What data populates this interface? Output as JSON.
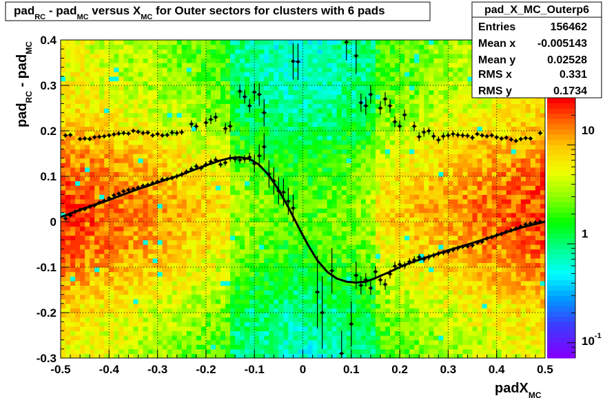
{
  "title": {
    "p1": "pad",
    "s1": "RC",
    "p2": " - pad",
    "s2": "MC",
    "p3": " versus X",
    "s3": "MC",
    "p4": " for Outer sectors for clusters with 6 pads"
  },
  "stats": {
    "name": "pad_X_MC_Outerp6",
    "rows": [
      {
        "label": "Entries",
        "value": "156462"
      },
      {
        "label": "Mean x",
        "value": "-0.005143"
      },
      {
        "label": "Mean y",
        "value": "0.02528"
      },
      {
        "label": "RMS x",
        "value": "0.331"
      },
      {
        "label": "RMS y",
        "value": "0.1734"
      }
    ]
  },
  "xaxis": {
    "label_main": "padX",
    "label_sub": "MC",
    "ticks": [
      "-0.5",
      "-0.4",
      "-0.3",
      "-0.2",
      "-0.1",
      "0",
      "0.1",
      "0.2",
      "0.3",
      "0.4",
      "0.5"
    ]
  },
  "yaxis": {
    "label_p1": "pad",
    "label_s1": "RC",
    "label_p2": " - pad",
    "label_s2": "MC",
    "ticks": [
      "-0.3",
      "-0.2",
      "-0.1",
      "0",
      "0.1",
      "0.2",
      "0.3",
      "0.4"
    ]
  },
  "zaxis": {
    "ticks": [
      {
        "main": "10",
        "exp": "-1"
      },
      {
        "main": "1",
        "exp": ""
      },
      {
        "main": "10",
        "exp": ""
      }
    ],
    "scale": "log"
  },
  "chart_data": {
    "type": "heatmap",
    "xlim": [
      -0.5,
      0.5
    ],
    "ylim": [
      -0.3,
      0.4
    ],
    "zlim": [
      0.07,
      30
    ],
    "grid": true,
    "legend": "top-right",
    "profile_points": [
      {
        "x": -0.49,
        "y": 0.007,
        "e": 0.005
      },
      {
        "x": -0.48,
        "y": 0.014,
        "e": 0.005
      },
      {
        "x": -0.47,
        "y": 0.022,
        "e": 0.005
      },
      {
        "x": -0.46,
        "y": 0.026,
        "e": 0.005
      },
      {
        "x": -0.45,
        "y": 0.028,
        "e": 0.005
      },
      {
        "x": -0.44,
        "y": 0.033,
        "e": 0.005
      },
      {
        "x": -0.43,
        "y": 0.036,
        "e": 0.005
      },
      {
        "x": -0.42,
        "y": 0.042,
        "e": 0.005
      },
      {
        "x": -0.41,
        "y": 0.046,
        "e": 0.005
      },
      {
        "x": -0.4,
        "y": 0.052,
        "e": 0.005
      },
      {
        "x": -0.39,
        "y": 0.058,
        "e": 0.005
      },
      {
        "x": -0.38,
        "y": 0.062,
        "e": 0.005
      },
      {
        "x": -0.37,
        "y": 0.067,
        "e": 0.005
      },
      {
        "x": -0.36,
        "y": 0.07,
        "e": 0.005
      },
      {
        "x": -0.35,
        "y": 0.072,
        "e": 0.005
      },
      {
        "x": -0.34,
        "y": 0.075,
        "e": 0.005
      },
      {
        "x": -0.33,
        "y": 0.079,
        "e": 0.005
      },
      {
        "x": -0.32,
        "y": 0.081,
        "e": 0.005
      },
      {
        "x": -0.31,
        "y": 0.085,
        "e": 0.005
      },
      {
        "x": -0.3,
        "y": 0.088,
        "e": 0.005
      },
      {
        "x": -0.29,
        "y": 0.093,
        "e": 0.005
      },
      {
        "x": -0.28,
        "y": 0.094,
        "e": 0.005
      },
      {
        "x": -0.27,
        "y": 0.096,
        "e": 0.005
      },
      {
        "x": -0.26,
        "y": 0.1,
        "e": 0.006
      },
      {
        "x": -0.25,
        "y": 0.104,
        "e": 0.006
      },
      {
        "x": -0.24,
        "y": 0.11,
        "e": 0.006
      },
      {
        "x": -0.23,
        "y": 0.116,
        "e": 0.006
      },
      {
        "x": -0.22,
        "y": 0.122,
        "e": 0.006
      },
      {
        "x": -0.21,
        "y": 0.118,
        "e": 0.006
      },
      {
        "x": -0.2,
        "y": 0.126,
        "e": 0.006
      },
      {
        "x": -0.19,
        "y": 0.132,
        "e": 0.007
      },
      {
        "x": -0.18,
        "y": 0.136,
        "e": 0.007
      },
      {
        "x": -0.17,
        "y": 0.126,
        "e": 0.007
      },
      {
        "x": -0.16,
        "y": 0.13,
        "e": 0.007
      },
      {
        "x": -0.15,
        "y": 0.14,
        "e": 0.008
      },
      {
        "x": -0.14,
        "y": 0.138,
        "e": 0.008
      },
      {
        "x": -0.13,
        "y": 0.136,
        "e": 0.008
      },
      {
        "x": -0.12,
        "y": 0.138,
        "e": 0.009
      },
      {
        "x": -0.11,
        "y": 0.142,
        "e": 0.01
      },
      {
        "x": -0.1,
        "y": 0.128,
        "e": 0.02
      },
      {
        "x": -0.09,
        "y": 0.145,
        "e": 0.025
      },
      {
        "x": -0.08,
        "y": 0.165,
        "e": 0.03
      },
      {
        "x": -0.07,
        "y": 0.105,
        "e": 0.03
      },
      {
        "x": -0.06,
        "y": 0.09,
        "e": 0.03
      },
      {
        "x": -0.05,
        "y": 0.068,
        "e": 0.03
      },
      {
        "x": -0.04,
        "y": 0.065,
        "e": 0.03
      },
      {
        "x": -0.03,
        "y": 0.045,
        "e": 0.03
      },
      {
        "x": -0.02,
        "y": 0.03,
        "e": 0.03
      },
      {
        "x": 0.03,
        "y": -0.155,
        "e": 0.08
      },
      {
        "x": 0.04,
        "y": -0.2,
        "e": 0.08
      },
      {
        "x": 0.06,
        "y": -0.108,
        "e": 0.05
      },
      {
        "x": 0.08,
        "y": -0.29,
        "e": 0.05
      },
      {
        "x": 0.1,
        "y": -0.225,
        "e": 0.05
      },
      {
        "x": 0.11,
        "y": -0.118,
        "e": 0.03
      },
      {
        "x": 0.12,
        "y": -0.14,
        "e": 0.02
      },
      {
        "x": 0.13,
        "y": -0.128,
        "e": 0.015
      },
      {
        "x": 0.14,
        "y": -0.146,
        "e": 0.015
      },
      {
        "x": 0.15,
        "y": -0.11,
        "e": 0.012
      },
      {
        "x": 0.16,
        "y": -0.128,
        "e": 0.012
      },
      {
        "x": 0.17,
        "y": -0.138,
        "e": 0.012
      },
      {
        "x": 0.18,
        "y": -0.115,
        "e": 0.01
      },
      {
        "x": 0.19,
        "y": -0.098,
        "e": 0.01
      },
      {
        "x": 0.2,
        "y": -0.094,
        "e": 0.01
      },
      {
        "x": 0.21,
        "y": -0.096,
        "e": 0.008
      },
      {
        "x": 0.22,
        "y": -0.088,
        "e": 0.008
      },
      {
        "x": 0.23,
        "y": -0.084,
        "e": 0.008
      },
      {
        "x": 0.24,
        "y": -0.078,
        "e": 0.007
      },
      {
        "x": 0.25,
        "y": -0.082,
        "e": 0.007
      },
      {
        "x": 0.26,
        "y": -0.078,
        "e": 0.007
      },
      {
        "x": 0.27,
        "y": -0.074,
        "e": 0.006
      },
      {
        "x": 0.28,
        "y": -0.07,
        "e": 0.006
      },
      {
        "x": 0.29,
        "y": -0.068,
        "e": 0.006
      },
      {
        "x": 0.3,
        "y": -0.066,
        "e": 0.006
      },
      {
        "x": 0.31,
        "y": -0.062,
        "e": 0.006
      },
      {
        "x": 0.32,
        "y": -0.058,
        "e": 0.006
      },
      {
        "x": 0.33,
        "y": -0.055,
        "e": 0.005
      },
      {
        "x": 0.34,
        "y": -0.054,
        "e": 0.005
      },
      {
        "x": 0.35,
        "y": -0.052,
        "e": 0.005
      },
      {
        "x": 0.36,
        "y": -0.046,
        "e": 0.005
      },
      {
        "x": 0.37,
        "y": -0.044,
        "e": 0.005
      },
      {
        "x": 0.38,
        "y": -0.037,
        "e": 0.005
      },
      {
        "x": 0.39,
        "y": -0.034,
        "e": 0.005
      },
      {
        "x": 0.4,
        "y": -0.03,
        "e": 0.005
      },
      {
        "x": 0.41,
        "y": -0.027,
        "e": 0.005
      },
      {
        "x": 0.42,
        "y": -0.022,
        "e": 0.005
      },
      {
        "x": 0.43,
        "y": -0.019,
        "e": 0.005
      },
      {
        "x": 0.44,
        "y": -0.015,
        "e": 0.005
      },
      {
        "x": 0.45,
        "y": -0.011,
        "e": 0.005
      },
      {
        "x": 0.46,
        "y": -0.006,
        "e": 0.005
      },
      {
        "x": 0.47,
        "y": -0.004,
        "e": 0.005
      },
      {
        "x": 0.48,
        "y": -0.002,
        "e": 0.005
      },
      {
        "x": 0.49,
        "y": 0.0,
        "e": 0.005
      }
    ],
    "upper_points": [
      {
        "x": -0.49,
        "y": 0.19,
        "e": 0.005
      },
      {
        "x": -0.48,
        "y": 0.191,
        "e": 0.005
      },
      {
        "x": -0.46,
        "y": 0.182,
        "e": 0.005
      },
      {
        "x": -0.45,
        "y": 0.183,
        "e": 0.005
      },
      {
        "x": -0.44,
        "y": 0.182,
        "e": 0.005
      },
      {
        "x": -0.43,
        "y": 0.186,
        "e": 0.005
      },
      {
        "x": -0.42,
        "y": 0.187,
        "e": 0.005
      },
      {
        "x": -0.41,
        "y": 0.188,
        "e": 0.005
      },
      {
        "x": -0.4,
        "y": 0.19,
        "e": 0.005
      },
      {
        "x": -0.39,
        "y": 0.192,
        "e": 0.005
      },
      {
        "x": -0.38,
        "y": 0.194,
        "e": 0.005
      },
      {
        "x": -0.37,
        "y": 0.195,
        "e": 0.005
      },
      {
        "x": -0.36,
        "y": 0.194,
        "e": 0.005
      },
      {
        "x": -0.35,
        "y": 0.2,
        "e": 0.005
      },
      {
        "x": -0.34,
        "y": 0.198,
        "e": 0.005
      },
      {
        "x": -0.33,
        "y": 0.195,
        "e": 0.005
      },
      {
        "x": -0.32,
        "y": 0.196,
        "e": 0.005
      },
      {
        "x": -0.31,
        "y": 0.19,
        "e": 0.005
      },
      {
        "x": -0.3,
        "y": 0.193,
        "e": 0.005
      },
      {
        "x": -0.29,
        "y": 0.19,
        "e": 0.005
      },
      {
        "x": -0.28,
        "y": 0.191,
        "e": 0.005
      },
      {
        "x": -0.27,
        "y": 0.196,
        "e": 0.006
      },
      {
        "x": -0.26,
        "y": 0.195,
        "e": 0.006
      },
      {
        "x": -0.25,
        "y": 0.197,
        "e": 0.006
      },
      {
        "x": -0.23,
        "y": 0.215,
        "e": 0.008
      },
      {
        "x": -0.22,
        "y": 0.21,
        "e": 0.008
      },
      {
        "x": -0.2,
        "y": 0.218,
        "e": 0.01
      },
      {
        "x": -0.19,
        "y": 0.225,
        "e": 0.01
      },
      {
        "x": -0.18,
        "y": 0.23,
        "e": 0.01
      },
      {
        "x": -0.16,
        "y": 0.205,
        "e": 0.012
      },
      {
        "x": -0.15,
        "y": 0.21,
        "e": 0.012
      },
      {
        "x": -0.13,
        "y": 0.287,
        "e": 0.015
      },
      {
        "x": -0.12,
        "y": 0.275,
        "e": 0.015
      },
      {
        "x": -0.11,
        "y": 0.255,
        "e": 0.015
      },
      {
        "x": -0.1,
        "y": 0.285,
        "e": 0.02
      },
      {
        "x": -0.09,
        "y": 0.28,
        "e": 0.025
      },
      {
        "x": -0.08,
        "y": 0.24,
        "e": 0.03
      },
      {
        "x": -0.02,
        "y": 0.353,
        "e": 0.04
      },
      {
        "x": -0.01,
        "y": 0.352,
        "e": 0.04
      },
      {
        "x": 0.09,
        "y": 0.395,
        "e": 0.04
      },
      {
        "x": 0.11,
        "y": 0.365,
        "e": 0.04
      },
      {
        "x": 0.12,
        "y": 0.262,
        "e": 0.02
      },
      {
        "x": 0.13,
        "y": 0.255,
        "e": 0.02
      },
      {
        "x": 0.14,
        "y": 0.28,
        "e": 0.02
      },
      {
        "x": 0.16,
        "y": 0.25,
        "e": 0.015
      },
      {
        "x": 0.17,
        "y": 0.27,
        "e": 0.015
      },
      {
        "x": 0.18,
        "y": 0.255,
        "e": 0.015
      },
      {
        "x": 0.19,
        "y": 0.22,
        "e": 0.012
      },
      {
        "x": 0.2,
        "y": 0.21,
        "e": 0.012
      },
      {
        "x": 0.21,
        "y": 0.235,
        "e": 0.012
      },
      {
        "x": 0.23,
        "y": 0.21,
        "e": 0.01
      },
      {
        "x": 0.24,
        "y": 0.187,
        "e": 0.01
      },
      {
        "x": 0.25,
        "y": 0.197,
        "e": 0.01
      },
      {
        "x": 0.26,
        "y": 0.2,
        "e": 0.008
      },
      {
        "x": 0.27,
        "y": 0.188,
        "e": 0.008
      },
      {
        "x": 0.28,
        "y": 0.18,
        "e": 0.008
      },
      {
        "x": 0.29,
        "y": 0.188,
        "e": 0.008
      },
      {
        "x": 0.3,
        "y": 0.19,
        "e": 0.007
      },
      {
        "x": 0.31,
        "y": 0.193,
        "e": 0.007
      },
      {
        "x": 0.32,
        "y": 0.191,
        "e": 0.006
      },
      {
        "x": 0.33,
        "y": 0.19,
        "e": 0.006
      },
      {
        "x": 0.34,
        "y": 0.189,
        "e": 0.006
      },
      {
        "x": 0.35,
        "y": 0.185,
        "e": 0.006
      },
      {
        "x": 0.36,
        "y": 0.193,
        "e": 0.005
      },
      {
        "x": 0.37,
        "y": 0.19,
        "e": 0.005
      },
      {
        "x": 0.38,
        "y": 0.188,
        "e": 0.005
      },
      {
        "x": 0.39,
        "y": 0.19,
        "e": 0.005
      },
      {
        "x": 0.4,
        "y": 0.186,
        "e": 0.005
      },
      {
        "x": 0.41,
        "y": 0.183,
        "e": 0.005
      },
      {
        "x": 0.42,
        "y": 0.185,
        "e": 0.005
      },
      {
        "x": 0.43,
        "y": 0.181,
        "e": 0.005
      },
      {
        "x": 0.44,
        "y": 0.178,
        "e": 0.005
      },
      {
        "x": 0.45,
        "y": 0.182,
        "e": 0.005
      },
      {
        "x": 0.46,
        "y": 0.184,
        "e": 0.005
      },
      {
        "x": 0.47,
        "y": 0.183,
        "e": 0.005
      },
      {
        "x": 0.49,
        "y": 0.195,
        "e": 0.005
      }
    ],
    "fit_curve": [
      {
        "x": -0.5,
        "y": 0.01
      },
      {
        "x": -0.45,
        "y": 0.03
      },
      {
        "x": -0.4,
        "y": 0.048
      },
      {
        "x": -0.35,
        "y": 0.068
      },
      {
        "x": -0.3,
        "y": 0.086
      },
      {
        "x": -0.25,
        "y": 0.104
      },
      {
        "x": -0.2,
        "y": 0.124
      },
      {
        "x": -0.17,
        "y": 0.135
      },
      {
        "x": -0.15,
        "y": 0.14
      },
      {
        "x": -0.13,
        "y": 0.142
      },
      {
        "x": -0.11,
        "y": 0.138
      },
      {
        "x": -0.09,
        "y": 0.125
      },
      {
        "x": -0.07,
        "y": 0.102
      },
      {
        "x": -0.05,
        "y": 0.07
      },
      {
        "x": -0.03,
        "y": 0.032
      },
      {
        "x": -0.01,
        "y": -0.01
      },
      {
        "x": 0.01,
        "y": -0.05
      },
      {
        "x": 0.03,
        "y": -0.085
      },
      {
        "x": 0.05,
        "y": -0.11
      },
      {
        "x": 0.07,
        "y": -0.125
      },
      {
        "x": 0.09,
        "y": -0.132
      },
      {
        "x": 0.11,
        "y": -0.134
      },
      {
        "x": 0.13,
        "y": -0.132
      },
      {
        "x": 0.15,
        "y": -0.124
      },
      {
        "x": 0.18,
        "y": -0.11
      },
      {
        "x": 0.21,
        "y": -0.095
      },
      {
        "x": 0.25,
        "y": -0.08
      },
      {
        "x": 0.3,
        "y": -0.063
      },
      {
        "x": 0.35,
        "y": -0.047
      },
      {
        "x": 0.4,
        "y": -0.03
      },
      {
        "x": 0.45,
        "y": -0.013
      },
      {
        "x": 0.5,
        "y": 0.0
      }
    ]
  }
}
